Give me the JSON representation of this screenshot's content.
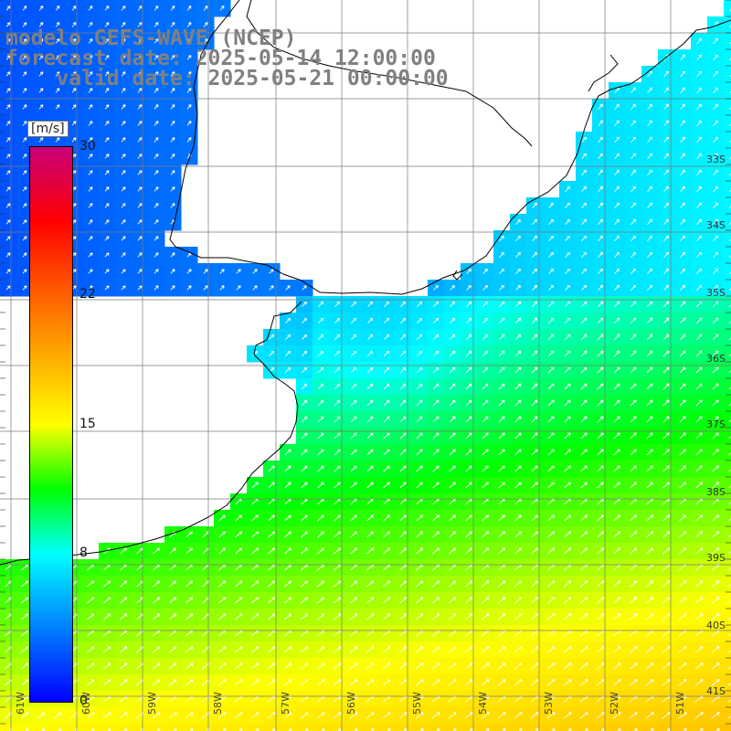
{
  "title": {
    "model": "modelo GEFS-WAVE (NCEP)",
    "forecast": "forecast date: 2025-05-14 12:00:00",
    "valid": "    valid date: 2025-05-21 00:00:00"
  },
  "colorbar": {
    "unit": "[m/s]",
    "ticks": [
      {
        "value": 30,
        "label": "30"
      },
      {
        "value": 22,
        "label": "22"
      },
      {
        "value": 15,
        "label": "15"
      },
      {
        "value": 8,
        "label": "8"
      },
      {
        "value": 0,
        "label": "0"
      }
    ],
    "range": [
      0,
      30
    ],
    "stops": [
      {
        "v": 0,
        "color": "#0000ff"
      },
      {
        "v": 8,
        "color": "#00ffff"
      },
      {
        "v": 11.5,
        "color": "#00ff00"
      },
      {
        "v": 15,
        "color": "#ffff00"
      },
      {
        "v": 22,
        "color": "#ff6000"
      },
      {
        "v": 26,
        "color": "#ff0000"
      },
      {
        "v": 30,
        "color": "#c8007a"
      }
    ]
  },
  "map": {
    "lon_range": [
      -61.5,
      -50.0
    ],
    "lat_range": [
      -41.3,
      -30.5
    ],
    "lat_labels": [
      "33S",
      "34S",
      "35S",
      "36S",
      "37S",
      "38S",
      "39S",
      "40S",
      "41S"
    ],
    "lon_labels": [
      "61W",
      "60W",
      "59W",
      "58W",
      "57W",
      "56W",
      "55W",
      "54W",
      "53W",
      "52W",
      "51W"
    ],
    "arrow_color": "#ffffff",
    "grid_color": "#7a7a7a",
    "coast_color": "#000000",
    "land_color": "#ffffff"
  }
}
